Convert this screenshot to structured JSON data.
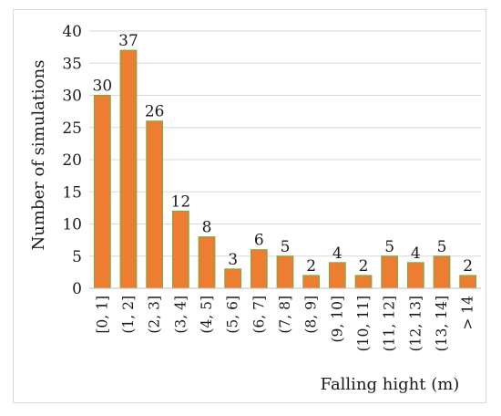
{
  "chart_data": {
    "type": "bar",
    "title": "",
    "xlabel": "Falling hight (m)",
    "ylabel": "Number of simulations",
    "categories": [
      "[0, 1]",
      "(1, 2]",
      "(2, 3]",
      "(3, 4]",
      "(4, 5]",
      "(5, 6]",
      "(6, 7]",
      "(7, 8]",
      "(8, 9]",
      "(9, 10]",
      "(10, 11]",
      "(11, 12]",
      "(12, 13]",
      "(13, 14]",
      "> 14"
    ],
    "values": [
      30,
      37,
      26,
      12,
      8,
      3,
      6,
      5,
      2,
      4,
      2,
      5,
      4,
      5,
      2
    ],
    "ylim": [
      0,
      40
    ],
    "yticks": [
      0,
      5,
      10,
      15,
      20,
      25,
      30,
      35,
      40
    ],
    "grid": true,
    "legend": "none",
    "bar_color": "#ED7D31",
    "bar_edge_color": "#70AD47"
  }
}
